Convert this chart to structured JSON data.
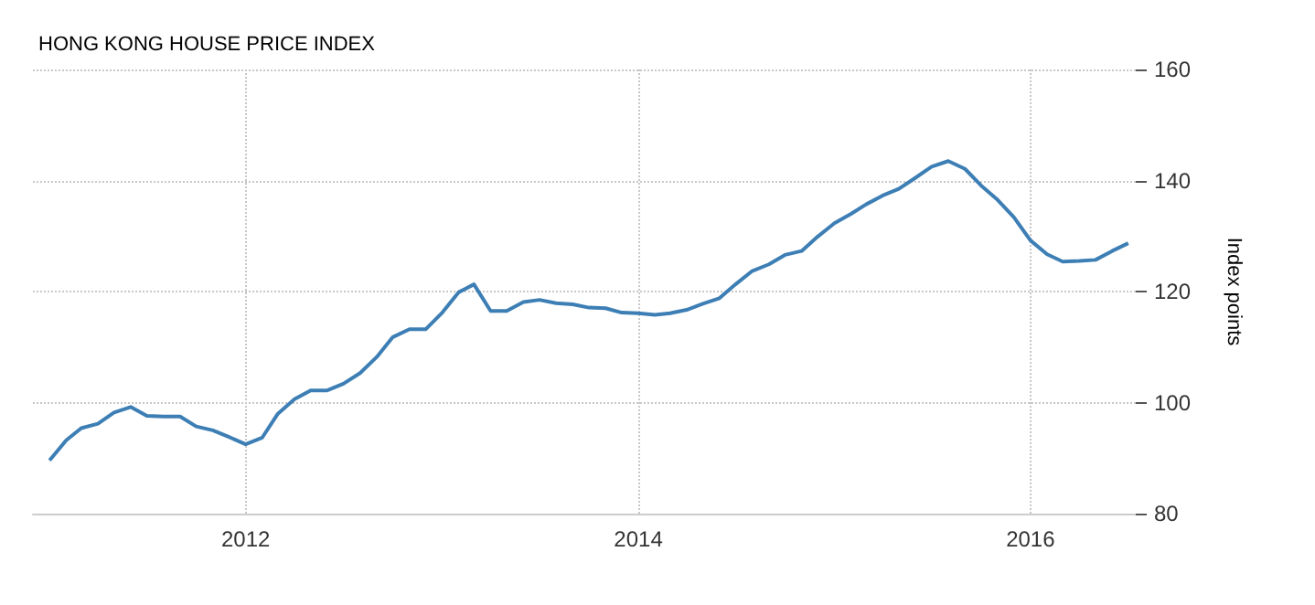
{
  "chart_data": {
    "type": "line",
    "title": "HONG KONG HOUSE PRICE INDEX",
    "ylabel": "Index points",
    "x": [
      "2011-01",
      "2011-02",
      "2011-03",
      "2011-04",
      "2011-05",
      "2011-06",
      "2011-07",
      "2011-08",
      "2011-09",
      "2011-10",
      "2011-11",
      "2011-12",
      "2012-01",
      "2012-02",
      "2012-03",
      "2012-04",
      "2012-05",
      "2012-06",
      "2012-07",
      "2012-08",
      "2012-09",
      "2012-10",
      "2012-11",
      "2012-12",
      "2013-01",
      "2013-02",
      "2013-03",
      "2013-04",
      "2013-05",
      "2013-06",
      "2013-07",
      "2013-08",
      "2013-09",
      "2013-10",
      "2013-11",
      "2013-12",
      "2014-01",
      "2014-02",
      "2014-03",
      "2014-04",
      "2014-05",
      "2014-06",
      "2014-07",
      "2014-08",
      "2014-09",
      "2014-10",
      "2014-11",
      "2014-12",
      "2015-01",
      "2015-02",
      "2015-03",
      "2015-04",
      "2015-05",
      "2015-06",
      "2015-07",
      "2015-08",
      "2015-09",
      "2015-10",
      "2015-11",
      "2015-12",
      "2016-01",
      "2016-02",
      "2016-03",
      "2016-04",
      "2016-05",
      "2016-06",
      "2016-07"
    ],
    "series": [
      {
        "color": "#3d7fb5",
        "values": [
          89.6,
          93.2,
          95.4,
          96.2,
          98.2,
          99.2,
          97.6,
          97.5,
          97.5,
          95.7,
          95.0,
          93.8,
          92.5,
          93.7,
          98.0,
          100.6,
          102.2,
          102.2,
          103.4,
          105.3,
          108.2,
          111.8,
          113.2,
          113.2,
          116.2,
          119.9,
          121.3,
          116.5,
          116.5,
          118.1,
          118.5,
          117.9,
          117.7,
          117.1,
          117.0,
          116.2,
          116.1,
          115.8,
          116.1,
          116.7,
          117.8,
          118.8,
          121.3,
          123.7,
          124.9,
          126.6,
          127.3,
          129.9,
          132.3,
          134.0,
          135.7,
          137.3,
          138.5,
          140.5,
          142.5,
          143.5,
          142.1,
          139.1,
          136.5,
          133.4,
          129.2,
          126.7,
          125.4,
          125.5,
          125.7,
          127.3,
          128.7
        ]
      }
    ],
    "xlim": [
      "2010-12",
      "2016-07-15"
    ],
    "xticks": [
      "2012",
      "2014",
      "2016"
    ],
    "ylim": [
      80,
      160
    ],
    "yticks": [
      80,
      100,
      120,
      140,
      160
    ],
    "grid": true,
    "marker": "none",
    "line_style": "solid"
  }
}
